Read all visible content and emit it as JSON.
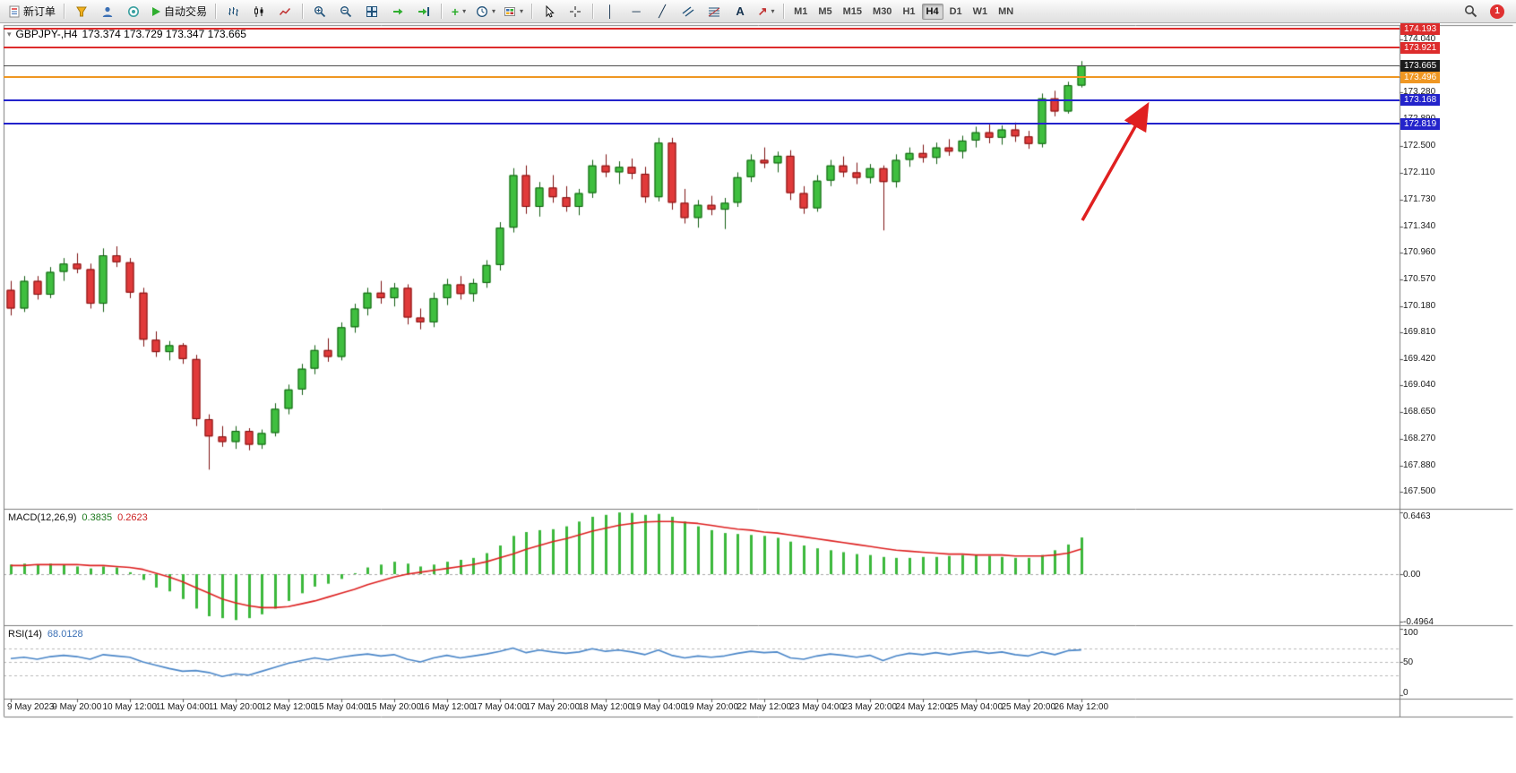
{
  "toolbar": {
    "new_order": "新订单",
    "auto_trading": "自动交易",
    "timeframes": [
      "M1",
      "M5",
      "M15",
      "M30",
      "H1",
      "H4",
      "D1",
      "W1",
      "MN"
    ],
    "active_timeframe": "H4",
    "notification_count": "1",
    "icons": {
      "caret": "▾",
      "vertical_line": "│",
      "horizontal_line": "─",
      "trendline": "╱",
      "text_tool": "A",
      "arrow_tool": "↗",
      "indicator_plus": "+"
    }
  },
  "chart": {
    "symbol_period": "GBPJPY-,H4",
    "ohlc_text": "173.374 173.729 173.347 173.665"
  },
  "price_axis": {
    "labels": [
      "174.040",
      "173.660",
      "173.280",
      "172.890",
      "172.500",
      "172.110",
      "171.730",
      "171.340",
      "170.960",
      "170.570",
      "170.180",
      "169.810",
      "169.420",
      "169.040",
      "168.650",
      "168.270",
      "167.880",
      "167.500"
    ],
    "tags": [
      {
        "text": "174.193",
        "color": "#dd2c2c"
      },
      {
        "text": "173.921",
        "color": "#dd2c2c"
      },
      {
        "text": "173.665",
        "color": "#1c1c1c"
      },
      {
        "text": "173.496",
        "color": "#ef9722"
      },
      {
        "text": "173.168",
        "color": "#2323cb"
      },
      {
        "text": "172.819",
        "color": "#2323cb"
      }
    ]
  },
  "levels": [
    {
      "price": 174.193,
      "color": "#dd2c2c",
      "thickness": 2,
      "name": "resistance-line-1"
    },
    {
      "price": 173.921,
      "color": "#dd2c2c",
      "thickness": 2,
      "name": "resistance-line-2"
    },
    {
      "price": 173.665,
      "color": "#4d4d4d",
      "thickness": 1,
      "name": "current-price-line"
    },
    {
      "price": 173.496,
      "color": "#ef9722",
      "thickness": 2,
      "name": "orange-level-line"
    },
    {
      "price": 173.168,
      "color": "#2323cb",
      "thickness": 2,
      "name": "blue-level-line-1"
    },
    {
      "price": 172.819,
      "color": "#2323cb",
      "thickness": 2,
      "name": "blue-level-line-2"
    }
  ],
  "macd": {
    "label": "MACD(12,26,9)",
    "value_main": "0.3835",
    "value_signal": "0.2623",
    "scale": [
      "0.6463",
      "0.00",
      "-0.4964"
    ]
  },
  "rsi": {
    "label": "RSI(14)",
    "value": "68.0128",
    "scale": [
      "100",
      "50",
      "0"
    ],
    "levels": [
      70,
      50,
      30
    ]
  },
  "time_axis": {
    "labels": [
      {
        "text": "9 May 2023",
        "bar": 0
      },
      {
        "text": "9 May 20:00",
        "bar": 5
      },
      {
        "text": "10 May 12:00",
        "bar": 9
      },
      {
        "text": "11 May 04:00",
        "bar": 13
      },
      {
        "text": "11 May 20:00",
        "bar": 17
      },
      {
        "text": "12 May 12:00",
        "bar": 21
      },
      {
        "text": "15 May 04:00",
        "bar": 25
      },
      {
        "text": "15 May 20:00",
        "bar": 29
      },
      {
        "text": "16 May 12:00",
        "bar": 33
      },
      {
        "text": "17 May 04:00",
        "bar": 37
      },
      {
        "text": "17 May 20:00",
        "bar": 41
      },
      {
        "text": "18 May 12:00",
        "bar": 45
      },
      {
        "text": "19 May 04:00",
        "bar": 49
      },
      {
        "text": "19 May 20:00",
        "bar": 53
      },
      {
        "text": "22 May 12:00",
        "bar": 57
      },
      {
        "text": "23 May 04:00",
        "bar": 61
      },
      {
        "text": "23 May 20:00",
        "bar": 65
      },
      {
        "text": "24 May 12:00",
        "bar": 69
      },
      {
        "text": "25 May 04:00",
        "bar": 73
      },
      {
        "text": "25 May 20:00",
        "bar": 77
      },
      {
        "text": "26 May 12:00",
        "bar": 81
      }
    ]
  },
  "annotations": {
    "trend_arrow": {
      "color": "#e02020",
      "direction": "up-right"
    }
  },
  "chart_data": {
    "type": "candlestick",
    "symbol": "GBPJPY-",
    "timeframe": "H4",
    "y_range": [
      167.28,
      174.25
    ],
    "current_bar": {
      "open": 173.374,
      "high": 173.729,
      "low": 173.347,
      "close": 173.665
    },
    "candles_ohlc": [
      [
        170.42,
        170.55,
        170.05,
        170.15
      ],
      [
        170.15,
        170.62,
        170.1,
        170.55
      ],
      [
        170.55,
        170.62,
        170.28,
        170.35
      ],
      [
        170.35,
        170.75,
        170.3,
        170.68
      ],
      [
        170.68,
        170.88,
        170.55,
        170.8
      ],
      [
        170.8,
        170.95,
        170.66,
        170.72
      ],
      [
        170.72,
        170.8,
        170.15,
        170.22
      ],
      [
        170.22,
        171.02,
        170.1,
        170.92
      ],
      [
        170.92,
        171.05,
        170.75,
        170.82
      ],
      [
        170.82,
        170.88,
        170.3,
        170.38
      ],
      [
        170.38,
        170.45,
        169.6,
        169.7
      ],
      [
        169.7,
        169.82,
        169.45,
        169.52
      ],
      [
        169.52,
        169.68,
        169.4,
        169.62
      ],
      [
        169.62,
        169.65,
        169.35,
        169.42
      ],
      [
        169.42,
        169.48,
        168.45,
        168.55
      ],
      [
        168.55,
        168.62,
        167.82,
        168.3
      ],
      [
        168.3,
        168.45,
        168.15,
        168.22
      ],
      [
        168.22,
        168.45,
        168.12,
        168.38
      ],
      [
        168.38,
        168.42,
        168.1,
        168.18
      ],
      [
        168.18,
        168.4,
        168.12,
        168.35
      ],
      [
        168.35,
        168.78,
        168.3,
        168.7
      ],
      [
        168.7,
        169.05,
        168.62,
        168.98
      ],
      [
        168.98,
        169.35,
        168.9,
        169.28
      ],
      [
        169.28,
        169.62,
        169.2,
        169.55
      ],
      [
        169.55,
        169.72,
        169.38,
        169.45
      ],
      [
        169.45,
        169.95,
        169.4,
        169.88
      ],
      [
        169.88,
        170.22,
        169.8,
        170.15
      ],
      [
        170.15,
        170.45,
        170.05,
        170.38
      ],
      [
        170.38,
        170.55,
        170.22,
        170.3
      ],
      [
        170.3,
        170.52,
        170.18,
        170.45
      ],
      [
        170.45,
        170.5,
        169.92,
        170.02
      ],
      [
        170.02,
        170.15,
        169.85,
        169.95
      ],
      [
        169.95,
        170.38,
        169.88,
        170.3
      ],
      [
        170.3,
        170.58,
        170.2,
        170.5
      ],
      [
        170.5,
        170.62,
        170.28,
        170.36
      ],
      [
        170.36,
        170.58,
        170.25,
        170.52
      ],
      [
        170.52,
        170.85,
        170.45,
        170.78
      ],
      [
        170.78,
        171.4,
        170.7,
        171.32
      ],
      [
        171.32,
        172.18,
        171.25,
        172.08
      ],
      [
        172.08,
        172.22,
        171.52,
        171.62
      ],
      [
        171.62,
        171.98,
        171.48,
        171.9
      ],
      [
        171.9,
        172.08,
        171.68,
        171.76
      ],
      [
        171.76,
        171.92,
        171.55,
        171.62
      ],
      [
        171.62,
        171.88,
        171.5,
        171.82
      ],
      [
        171.82,
        172.3,
        171.75,
        172.22
      ],
      [
        172.22,
        172.38,
        172.05,
        172.12
      ],
      [
        172.12,
        172.28,
        171.95,
        172.2
      ],
      [
        172.2,
        172.32,
        172.02,
        172.1
      ],
      [
        172.1,
        172.2,
        171.68,
        171.76
      ],
      [
        171.76,
        172.62,
        171.7,
        172.55
      ],
      [
        172.55,
        172.62,
        171.58,
        171.68
      ],
      [
        171.68,
        171.88,
        171.38,
        171.46
      ],
      [
        171.46,
        171.72,
        171.32,
        171.65
      ],
      [
        171.65,
        171.78,
        171.5,
        171.58
      ],
      [
        171.58,
        171.75,
        171.3,
        171.68
      ],
      [
        171.68,
        172.12,
        171.62,
        172.05
      ],
      [
        172.05,
        172.38,
        171.98,
        172.3
      ],
      [
        172.3,
        172.48,
        172.18,
        172.25
      ],
      [
        172.25,
        172.42,
        172.12,
        172.36
      ],
      [
        172.36,
        172.44,
        171.72,
        171.82
      ],
      [
        171.82,
        171.92,
        171.52,
        171.6
      ],
      [
        171.6,
        172.08,
        171.55,
        172.0
      ],
      [
        172.0,
        172.3,
        171.92,
        172.22
      ],
      [
        172.22,
        172.35,
        172.05,
        172.12
      ],
      [
        172.12,
        172.26,
        171.95,
        172.04
      ],
      [
        172.04,
        172.24,
        171.96,
        172.18
      ],
      [
        172.18,
        172.22,
        171.28,
        171.98
      ],
      [
        171.98,
        172.38,
        171.9,
        172.3
      ],
      [
        172.3,
        172.48,
        172.2,
        172.4
      ],
      [
        172.4,
        172.52,
        172.26,
        172.33
      ],
      [
        172.33,
        172.55,
        172.24,
        172.48
      ],
      [
        172.48,
        172.6,
        172.36,
        172.42
      ],
      [
        172.42,
        172.65,
        172.32,
        172.58
      ],
      [
        172.58,
        172.78,
        172.48,
        172.7
      ],
      [
        172.7,
        172.82,
        172.54,
        172.62
      ],
      [
        172.62,
        172.8,
        172.52,
        172.74
      ],
      [
        172.74,
        172.84,
        172.56,
        172.64
      ],
      [
        172.64,
        172.72,
        172.46,
        172.53
      ],
      [
        172.53,
        173.26,
        172.48,
        173.19
      ],
      [
        173.19,
        173.3,
        172.93,
        173.0
      ],
      [
        173.0,
        173.43,
        172.97,
        173.38
      ],
      [
        173.374,
        173.729,
        173.347,
        173.665
      ]
    ],
    "indicators": [
      {
        "type": "bar",
        "name": "MACD histogram",
        "color": "#3cb83c",
        "range": [
          -0.4964,
          0.6463
        ],
        "values": [
          0.1,
          0.11,
          0.1,
          0.11,
          0.1,
          0.08,
          0.06,
          0.08,
          0.07,
          0.02,
          -0.06,
          -0.14,
          -0.18,
          -0.26,
          -0.36,
          -0.44,
          -0.46,
          -0.48,
          -0.46,
          -0.42,
          -0.36,
          -0.28,
          -0.2,
          -0.13,
          -0.1,
          -0.05,
          0.01,
          0.07,
          0.1,
          0.13,
          0.11,
          0.08,
          0.1,
          0.13,
          0.15,
          0.17,
          0.22,
          0.3,
          0.4,
          0.44,
          0.46,
          0.47,
          0.5,
          0.55,
          0.6,
          0.62,
          0.645,
          0.64,
          0.62,
          0.63,
          0.6,
          0.55,
          0.5,
          0.46,
          0.43,
          0.42,
          0.41,
          0.4,
          0.38,
          0.34,
          0.3,
          0.27,
          0.25,
          0.23,
          0.21,
          0.2,
          0.18,
          0.17,
          0.17,
          0.18,
          0.18,
          0.19,
          0.2,
          0.2,
          0.19,
          0.18,
          0.17,
          0.17,
          0.2,
          0.25,
          0.31,
          0.3835
        ]
      },
      {
        "type": "line",
        "name": "MACD signal",
        "color": "#dd2020",
        "values": [
          0.09,
          0.09,
          0.1,
          0.1,
          0.1,
          0.1,
          0.09,
          0.09,
          0.08,
          0.07,
          0.05,
          0.01,
          -0.03,
          -0.08,
          -0.14,
          -0.2,
          -0.26,
          -0.3,
          -0.33,
          -0.35,
          -0.35,
          -0.34,
          -0.31,
          -0.28,
          -0.24,
          -0.2,
          -0.16,
          -0.11,
          -0.07,
          -0.03,
          0.0,
          0.02,
          0.04,
          0.06,
          0.08,
          0.1,
          0.13,
          0.17,
          0.21,
          0.26,
          0.3,
          0.34,
          0.37,
          0.41,
          0.45,
          0.48,
          0.51,
          0.53,
          0.545,
          0.55,
          0.55,
          0.54,
          0.53,
          0.51,
          0.49,
          0.47,
          0.46,
          0.44,
          0.43,
          0.41,
          0.39,
          0.37,
          0.35,
          0.33,
          0.31,
          0.29,
          0.27,
          0.25,
          0.24,
          0.23,
          0.22,
          0.21,
          0.21,
          0.2,
          0.2,
          0.2,
          0.19,
          0.19,
          0.19,
          0.2,
          0.22,
          0.2623
        ]
      },
      {
        "type": "line",
        "name": "RSI(14)",
        "color": "#4a86c8",
        "range": [
          0,
          100
        ],
        "values": [
          55,
          57,
          54,
          58,
          60,
          58,
          54,
          61,
          59,
          57,
          50,
          45,
          40,
          36,
          37,
          34,
          28,
          32,
          30,
          36,
          42,
          48,
          52,
          56,
          53,
          57,
          60,
          62,
          59,
          61,
          54,
          50,
          56,
          60,
          56,
          59,
          62,
          66,
          71,
          64,
          68,
          65,
          63,
          65,
          70,
          66,
          68,
          65,
          61,
          68,
          60,
          56,
          59,
          57,
          59,
          63,
          66,
          64,
          65,
          56,
          54,
          59,
          62,
          60,
          57,
          60,
          52,
          59,
          63,
          61,
          64,
          61,
          64,
          66,
          63,
          65,
          61,
          59,
          65,
          61,
          67,
          68.0128
        ]
      }
    ]
  }
}
